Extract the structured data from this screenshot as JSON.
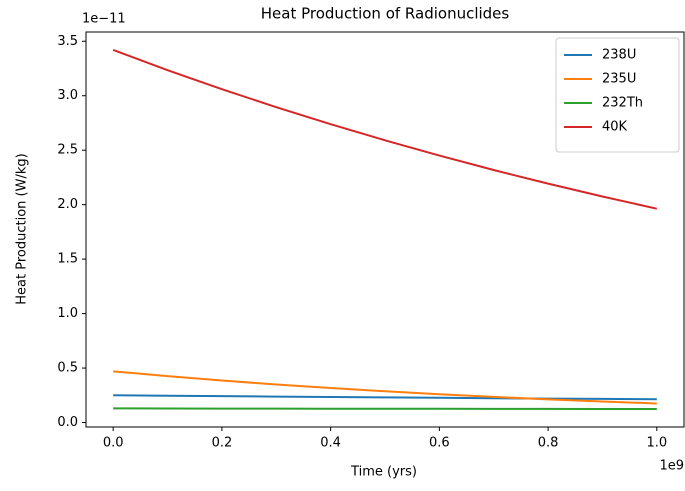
{
  "chart_data": {
    "type": "line",
    "title": "Heat Production of Radionuclides",
    "x_label": "Time (yrs)",
    "y_label": "Heat Production (W/kg)",
    "x_offset": "1e9",
    "y_offset": "1e−11",
    "x": [
      0,
      0.1,
      0.2,
      0.3,
      0.4,
      0.5,
      0.6,
      0.7,
      0.8,
      0.9,
      1.0
    ],
    "series": [
      {
        "name": "238U",
        "color": "#1f77b4",
        "values": [
          0.25,
          0.246,
          0.242,
          0.238,
          0.234,
          0.231,
          0.227,
          0.223,
          0.22,
          0.217,
          0.214
        ]
      },
      {
        "name": "235U",
        "color": "#ff7f0e",
        "values": [
          0.47,
          0.426,
          0.386,
          0.349,
          0.317,
          0.287,
          0.26,
          0.235,
          0.213,
          0.193,
          0.175
        ]
      },
      {
        "name": "232Th",
        "color": "#2ca02c",
        "values": [
          0.13,
          0.129,
          0.128,
          0.128,
          0.127,
          0.127,
          0.126,
          0.125,
          0.125,
          0.124,
          0.124
        ]
      },
      {
        "name": "40K",
        "color": "#d62728",
        "values": [
          3.42,
          3.235,
          3.06,
          2.895,
          2.739,
          2.591,
          2.451,
          2.318,
          2.193,
          2.075,
          1.963
        ]
      }
    ],
    "xlim": [
      -0.05,
      1.05
    ],
    "xticks": [
      {
        "value": 0,
        "label": "0.0"
      },
      0.2,
      0.4,
      0.6,
      0.8,
      {
        "value": 1,
        "label": "1.0"
      }
    ],
    "ylim": [
      -0.041,
      3.585
    ],
    "yticks": [
      {
        "value": 0,
        "label": "0.0"
      },
      0.5,
      {
        "value": 1,
        "label": "1.0"
      },
      1.5,
      {
        "value": 2,
        "label": "2.0"
      },
      2.5,
      {
        "value": 3,
        "label": "3.0"
      },
      3.5
    ],
    "grid": false,
    "legend": "upper right"
  }
}
